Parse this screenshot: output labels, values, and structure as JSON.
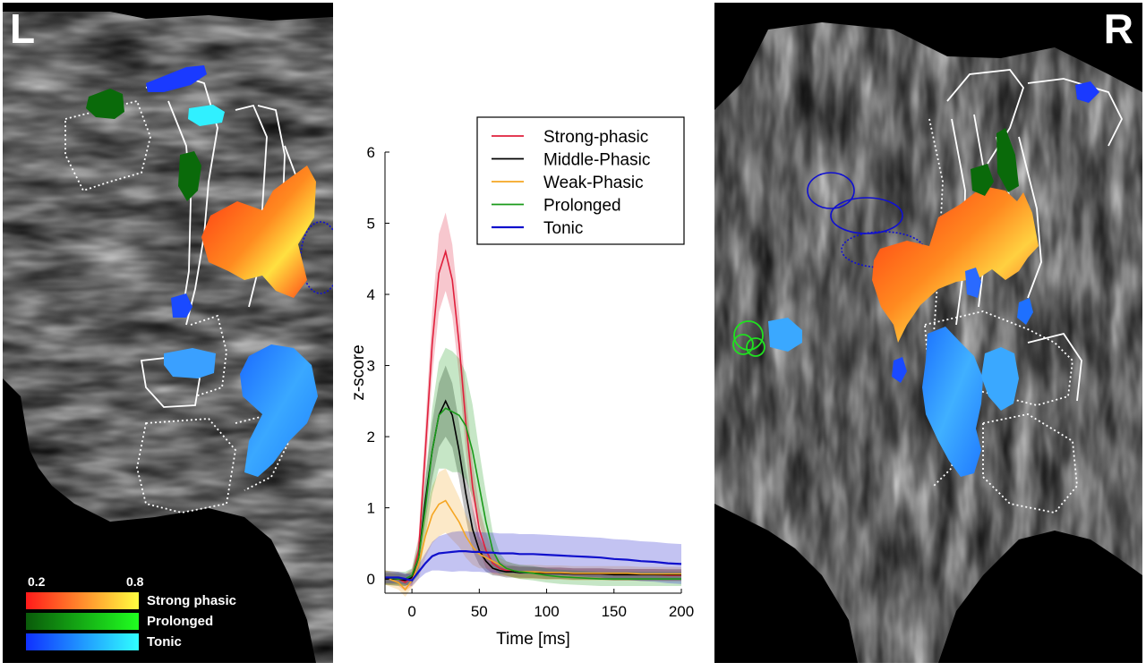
{
  "figure": {
    "left_label": "L",
    "right_label": "R",
    "colorbar": {
      "min_label": "0.2",
      "max_label": "0.8",
      "entries": [
        {
          "label": "Strong phasic",
          "from": "#ff1a1a",
          "to": "#ffff40"
        },
        {
          "label": "Prolonged",
          "from": "#0a5a0a",
          "to": "#20ff20"
        },
        {
          "label": "Tonic",
          "from": "#1030ff",
          "to": "#30ffff"
        }
      ]
    }
  },
  "chart_data": {
    "type": "line",
    "xlabel": "Time [ms]",
    "ylabel": "z-score",
    "xlim": [
      -20,
      200
    ],
    "ylim": [
      -0.2,
      6
    ],
    "xticks": [
      0,
      50,
      100,
      150,
      200
    ],
    "yticks": [
      0,
      1,
      2,
      3,
      4,
      5,
      6
    ],
    "legend_position": "top-right",
    "x": [
      -20,
      -10,
      -5,
      0,
      5,
      10,
      15,
      20,
      25,
      30,
      35,
      40,
      45,
      50,
      55,
      60,
      65,
      70,
      75,
      80,
      90,
      100,
      110,
      120,
      130,
      140,
      150,
      160,
      170,
      180,
      190,
      200
    ],
    "series": [
      {
        "name": "Strong-phasic",
        "color": "#e0203c",
        "values": [
          0.02,
          0.0,
          -0.05,
          0.02,
          0.4,
          1.8,
          3.3,
          4.3,
          4.6,
          4.2,
          3.3,
          2.2,
          1.3,
          0.7,
          0.4,
          0.22,
          0.15,
          0.12,
          0.11,
          0.1,
          0.09,
          0.08,
          0.08,
          0.07,
          0.07,
          0.07,
          0.06,
          0.06,
          0.06,
          0.06,
          0.05,
          0.05
        ],
        "band": [
          0.1,
          0.1,
          0.12,
          0.12,
          0.2,
          0.35,
          0.45,
          0.55,
          0.55,
          0.5,
          0.45,
          0.4,
          0.35,
          0.3,
          0.25,
          0.15,
          0.1,
          0.08,
          0.08,
          0.08,
          0.08,
          0.08,
          0.08,
          0.08,
          0.08,
          0.08,
          0.08,
          0.08,
          0.08,
          0.08,
          0.08,
          0.08
        ]
      },
      {
        "name": "Middle-Phasic",
        "color": "#000000",
        "values": [
          0.0,
          0.0,
          -0.02,
          0.02,
          0.3,
          1.1,
          1.8,
          2.3,
          2.5,
          2.3,
          1.8,
          1.2,
          0.7,
          0.4,
          0.25,
          0.15,
          0.12,
          0.1,
          0.1,
          0.09,
          0.09,
          0.08,
          0.08,
          0.07,
          0.07,
          0.07,
          0.06,
          0.06,
          0.06,
          0.06,
          0.06,
          0.06
        ],
        "band": [
          0.08,
          0.08,
          0.08,
          0.08,
          0.15,
          0.3,
          0.4,
          0.45,
          0.5,
          0.45,
          0.4,
          0.35,
          0.3,
          0.2,
          0.15,
          0.1,
          0.08,
          0.08,
          0.08,
          0.08,
          0.08,
          0.08,
          0.08,
          0.08,
          0.08,
          0.08,
          0.08,
          0.08,
          0.08,
          0.08,
          0.08,
          0.08
        ]
      },
      {
        "name": "Weak-Phasic",
        "color": "#f5a623",
        "values": [
          0.02,
          -0.05,
          -0.15,
          -0.02,
          0.2,
          0.6,
          0.9,
          1.05,
          1.1,
          0.95,
          0.8,
          0.6,
          0.45,
          0.35,
          0.3,
          0.25,
          0.2,
          0.15,
          0.12,
          0.1,
          0.1,
          0.09,
          0.09,
          0.08,
          0.08,
          0.08,
          0.08,
          0.08,
          0.07,
          0.07,
          0.07,
          0.07
        ],
        "band": [
          0.1,
          0.1,
          0.1,
          0.1,
          0.2,
          0.3,
          0.4,
          0.45,
          0.45,
          0.4,
          0.35,
          0.3,
          0.25,
          0.2,
          0.15,
          0.12,
          0.1,
          0.1,
          0.1,
          0.1,
          0.1,
          0.1,
          0.1,
          0.1,
          0.1,
          0.1,
          0.1,
          0.1,
          0.1,
          0.1,
          0.1,
          0.1
        ]
      },
      {
        "name": "Prolonged",
        "color": "#1a9a1a",
        "values": [
          0.02,
          0.0,
          0.0,
          0.05,
          0.3,
          1.0,
          1.8,
          2.3,
          2.4,
          2.35,
          2.3,
          2.15,
          1.8,
          1.3,
          0.8,
          0.4,
          0.22,
          0.15,
          0.12,
          0.1,
          0.08,
          0.05,
          0.03,
          0.02,
          0.01,
          0.0,
          0.0,
          0.0,
          0.0,
          0.0,
          0.0,
          0.0
        ],
        "band": [
          0.1,
          0.1,
          0.1,
          0.1,
          0.25,
          0.4,
          0.6,
          0.75,
          0.85,
          0.85,
          0.8,
          0.75,
          0.65,
          0.5,
          0.4,
          0.25,
          0.15,
          0.1,
          0.1,
          0.1,
          0.1,
          0.1,
          0.1,
          0.1,
          0.1,
          0.1,
          0.1,
          0.1,
          0.1,
          0.1,
          0.1,
          0.1
        ]
      },
      {
        "name": "Tonic",
        "color": "#1010cc",
        "values": [
          0.02,
          0.02,
          0.0,
          -0.02,
          0.1,
          0.22,
          0.32,
          0.36,
          0.37,
          0.38,
          0.39,
          0.39,
          0.38,
          0.38,
          0.37,
          0.37,
          0.36,
          0.36,
          0.36,
          0.35,
          0.35,
          0.34,
          0.33,
          0.32,
          0.31,
          0.3,
          0.28,
          0.27,
          0.25,
          0.24,
          0.22,
          0.21
        ],
        "band": [
          0.08,
          0.08,
          0.08,
          0.08,
          0.1,
          0.14,
          0.2,
          0.24,
          0.26,
          0.28,
          0.28,
          0.28,
          0.28,
          0.28,
          0.28,
          0.28,
          0.28,
          0.28,
          0.28,
          0.28,
          0.28,
          0.28,
          0.28,
          0.28,
          0.28,
          0.28,
          0.28,
          0.28,
          0.28,
          0.28,
          0.28,
          0.28
        ]
      }
    ]
  }
}
